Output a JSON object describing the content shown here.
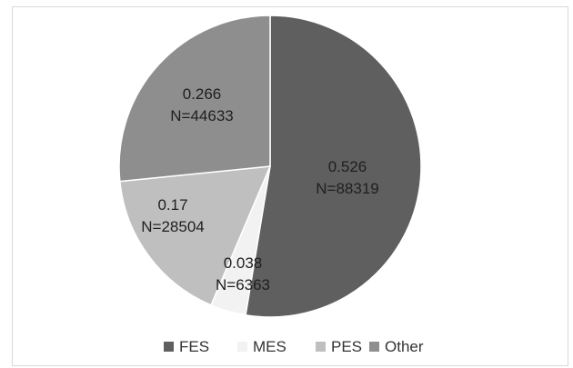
{
  "chart_data": {
    "type": "pie",
    "categories": [
      "FES",
      "MES",
      "PES",
      "Other"
    ],
    "values": [
      0.526,
      0.038,
      0.17,
      0.266
    ],
    "counts": [
      "N=88319",
      "N=6363",
      "N=28504",
      "N=44633"
    ],
    "value_labels": [
      "0.526",
      "0.038",
      "0.17",
      "0.266"
    ],
    "colors": [
      "#5f5f5f",
      "#f2f2f2",
      "#bfbfbf",
      "#8e8e8e"
    ],
    "start_angle_deg": 0,
    "direction": "clockwise",
    "legend_position": "bottom",
    "title": ""
  }
}
